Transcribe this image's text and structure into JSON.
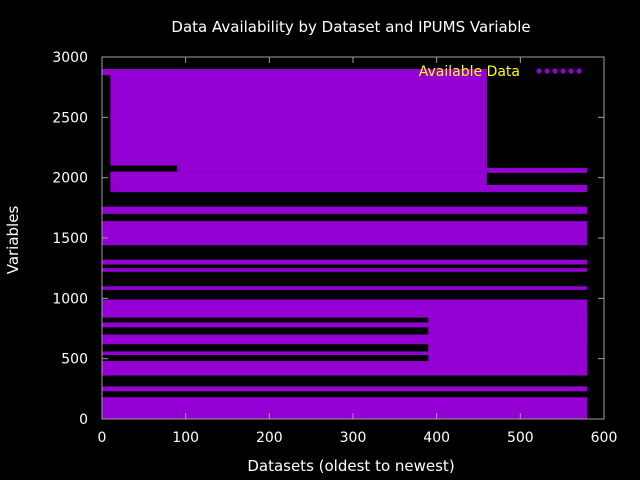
{
  "chart_data": {
    "type": "scatter",
    "title": "Data Availability by Dataset and IPUMS Variable",
    "xlabel": "Datasets (oldest to newest)",
    "ylabel": "Variables",
    "xlim": [
      0,
      600
    ],
    "ylim": [
      0,
      3000
    ],
    "xticks": [
      "0",
      "100",
      "200",
      "300",
      "400",
      "500",
      "600"
    ],
    "yticks": [
      "0",
      "500",
      "1000",
      "1500",
      "2000",
      "2500",
      "3000"
    ],
    "grid": false,
    "legend_position": "top-right",
    "point_color": "#9400d3",
    "series": [
      {
        "name": "Available Data",
        "regions": [
          {
            "x": [
              0,
              580
            ],
            "y": [
              0,
              180
            ]
          },
          {
            "x": [
              0,
              580
            ],
            "y": [
              230,
              270
            ]
          },
          {
            "x": [
              0,
              580
            ],
            "y": [
              360,
              480
            ]
          },
          {
            "x": [
              0,
              580
            ],
            "y": [
              530,
              560
            ]
          },
          {
            "x": [
              0,
              580
            ],
            "y": [
              620,
              700
            ]
          },
          {
            "x": [
              0,
              580
            ],
            "y": [
              760,
              800
            ]
          },
          {
            "x": [
              0,
              580
            ],
            "y": [
              840,
              990
            ]
          },
          {
            "x": [
              0,
              580
            ],
            "y": [
              1070,
              1100
            ]
          },
          {
            "x": [
              0,
              580
            ],
            "y": [
              1220,
              1250
            ]
          },
          {
            "x": [
              0,
              580
            ],
            "y": [
              1280,
              1320
            ]
          },
          {
            "x": [
              0,
              580
            ],
            "y": [
              1440,
              1640
            ]
          },
          {
            "x": [
              0,
              580
            ],
            "y": [
              1700,
              1760
            ]
          },
          {
            "x": [
              10,
              580
            ],
            "y": [
              1880,
              1940
            ]
          },
          {
            "x": [
              10,
              460
            ],
            "y": [
              1940,
              2050
            ]
          },
          {
            "x": [
              460,
              580
            ],
            "y": [
              2040,
              2080
            ]
          },
          {
            "x": [
              10,
              460
            ],
            "y": [
              2100,
              2870
            ]
          },
          {
            "x": [
              90,
              460
            ],
            "y": [
              2050,
              2900
            ]
          },
          {
            "x": [
              0,
              460
            ],
            "y": [
              2850,
              2900
            ]
          },
          {
            "x": [
              390,
              580
            ],
            "y": [
              400,
              880
            ]
          }
        ]
      }
    ]
  }
}
